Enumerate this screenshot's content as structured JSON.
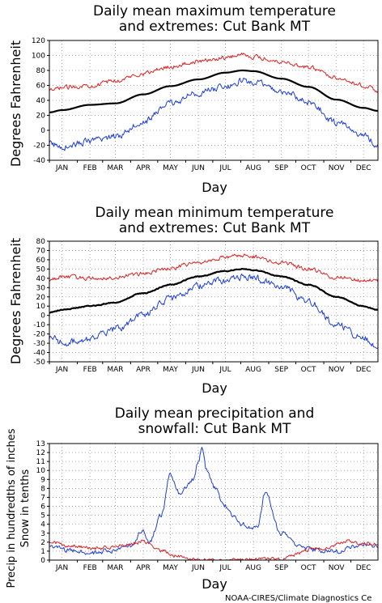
{
  "credit": "NOAA-CIRES/Climate Diagnostics Ce",
  "colors": {
    "mean": "#000000",
    "high_extreme": "#dd2222",
    "low_extreme": "#1f3fd6",
    "precip": "#1f3fd6",
    "snow": "#dd2222",
    "grid": "#9a9a9a"
  },
  "chart_data": [
    {
      "type": "line",
      "title": [
        "Daily mean maximum temperature",
        "and extremes: Cut Bank MT"
      ],
      "xlabel": "Day",
      "ylabel": "Degrees Fahrenheit",
      "months": [
        "JAN",
        "FEB",
        "MAR",
        "APR",
        "MAY",
        "JUN",
        "JUL",
        "AUG",
        "SEP",
        "OCT",
        "NOV",
        "DEC"
      ],
      "x_unit": "day of year",
      "xlim": [
        1,
        365
      ],
      "ylim": [
        -40,
        120
      ],
      "yticks": [
        -40,
        -20,
        0,
        20,
        40,
        60,
        80,
        100,
        120
      ],
      "grid": true,
      "series": [
        {
          "role": "mean",
          "color": "#000000",
          "line_width": 2.2,
          "x": [
            1,
            15,
            46,
            74,
            105,
            135,
            166,
            196,
            215,
            227,
            258,
            288,
            319,
            349,
            365
          ],
          "y": [
            24,
            27,
            34,
            36,
            48,
            59,
            68,
            77,
            80,
            79,
            69,
            58,
            41,
            30,
            26
          ]
        },
        {
          "role": "high_extreme",
          "color": "#dd2222",
          "line_width": 1,
          "x": [
            1,
            15,
            46,
            74,
            105,
            135,
            166,
            196,
            215,
            227,
            258,
            288,
            319,
            349,
            365
          ],
          "y": [
            52,
            57,
            60,
            66,
            76,
            85,
            92,
            97,
            102,
            98,
            92,
            84,
            71,
            60,
            53
          ],
          "noise": 4.5
        },
        {
          "role": "low_extreme",
          "color": "#1f3fd6",
          "line_width": 1,
          "x": [
            1,
            15,
            46,
            74,
            105,
            135,
            166,
            196,
            215,
            227,
            258,
            288,
            319,
            349,
            365
          ],
          "y": [
            -18,
            -22,
            -15,
            -8,
            12,
            36,
            50,
            58,
            66,
            64,
            52,
            38,
            10,
            -6,
            -20
          ],
          "noise": 7
        }
      ]
    },
    {
      "type": "line",
      "title": [
        "Daily mean minimum temperature",
        "and extremes: Cut Bank MT"
      ],
      "xlabel": "Day",
      "ylabel": "Degrees Fahrenheit",
      "months": [
        "JAN",
        "FEB",
        "MAR",
        "APR",
        "MAY",
        "JUN",
        "JUL",
        "AUG",
        "SEP",
        "OCT",
        "NOV",
        "DEC"
      ],
      "x_unit": "day of year",
      "xlim": [
        1,
        365
      ],
      "ylim": [
        -50,
        80
      ],
      "yticks": [
        -50,
        -40,
        -30,
        -20,
        -10,
        0,
        10,
        20,
        30,
        40,
        50,
        60,
        70,
        80
      ],
      "grid": true,
      "series": [
        {
          "role": "mean",
          "color": "#000000",
          "line_width": 2.2,
          "x": [
            1,
            15,
            46,
            74,
            105,
            135,
            166,
            196,
            215,
            227,
            258,
            288,
            319,
            349,
            365
          ],
          "y": [
            3,
            6,
            10,
            14,
            24,
            33,
            42,
            48,
            50,
            49,
            42,
            33,
            20,
            10,
            6
          ],
          "noise": 0.8
        },
        {
          "role": "high_extreme",
          "color": "#dd2222",
          "line_width": 1,
          "x": [
            1,
            15,
            46,
            74,
            105,
            135,
            166,
            196,
            215,
            227,
            258,
            288,
            319,
            349,
            365
          ],
          "y": [
            38,
            42,
            40,
            41,
            45,
            51,
            57,
            62,
            65,
            63,
            57,
            50,
            41,
            38,
            37
          ],
          "noise": 3.5
        },
        {
          "role": "low_extreme",
          "color": "#1f3fd6",
          "line_width": 1,
          "x": [
            1,
            15,
            46,
            74,
            105,
            135,
            166,
            196,
            215,
            227,
            258,
            288,
            319,
            349,
            365
          ],
          "y": [
            -22,
            -30,
            -25,
            -15,
            0,
            18,
            32,
            38,
            42,
            40,
            30,
            15,
            -10,
            -25,
            -32
          ],
          "noise": 6
        }
      ]
    },
    {
      "type": "line",
      "title": [
        "Daily mean precipitation and",
        "snowfall: Cut Bank MT"
      ],
      "xlabel": "Day",
      "ylabel": [
        "Precip in hundredths of inches",
        "Snow in tenths"
      ],
      "months": [
        "JAN",
        "FEB",
        "MAR",
        "APR",
        "MAY",
        "JUN",
        "JUL",
        "AUG",
        "SEP",
        "OCT",
        "NOV",
        "DEC"
      ],
      "x_unit": "day of year",
      "xlim": [
        1,
        365
      ],
      "ylim": [
        0,
        13
      ],
      "yticks": [
        0,
        1,
        2,
        3,
        4,
        5,
        6,
        7,
        8,
        9,
        10,
        11,
        12,
        13
      ],
      "grid": true,
      "series": [
        {
          "role": "precipitation",
          "color": "#1f3fd6",
          "line_width": 1,
          "x": [
            1,
            20,
            46,
            70,
            90,
            105,
            112,
            125,
            135,
            145,
            152,
            160,
            166,
            170,
            175,
            185,
            195,
            205,
            215,
            225,
            232,
            240,
            258,
            280,
            300,
            320,
            335,
            350,
            365
          ],
          "y": [
            1.6,
            1.1,
            0.8,
            1.0,
            1.6,
            3.2,
            2.0,
            5.0,
            9.5,
            7.5,
            8.0,
            9.0,
            11.0,
            12.8,
            10.0,
            8.0,
            6.0,
            5.0,
            4.0,
            3.5,
            3.8,
            7.5,
            3.0,
            1.5,
            1.0,
            1.0,
            1.4,
            1.8,
            1.5
          ],
          "noise": 0.45
        },
        {
          "role": "snowfall",
          "color": "#dd2222",
          "line_width": 1,
          "x": [
            1,
            20,
            46,
            70,
            90,
            105,
            125,
            145,
            160,
            200,
            230,
            255,
            270,
            290,
            310,
            330,
            350,
            365
          ],
          "y": [
            2.0,
            1.6,
            1.3,
            1.4,
            1.8,
            2.1,
            1.0,
            0.4,
            0.05,
            0.0,
            0.0,
            0.1,
            0.6,
            1.2,
            1.4,
            2.1,
            1.9,
            1.7
          ],
          "noise": 0.35
        }
      ]
    }
  ]
}
